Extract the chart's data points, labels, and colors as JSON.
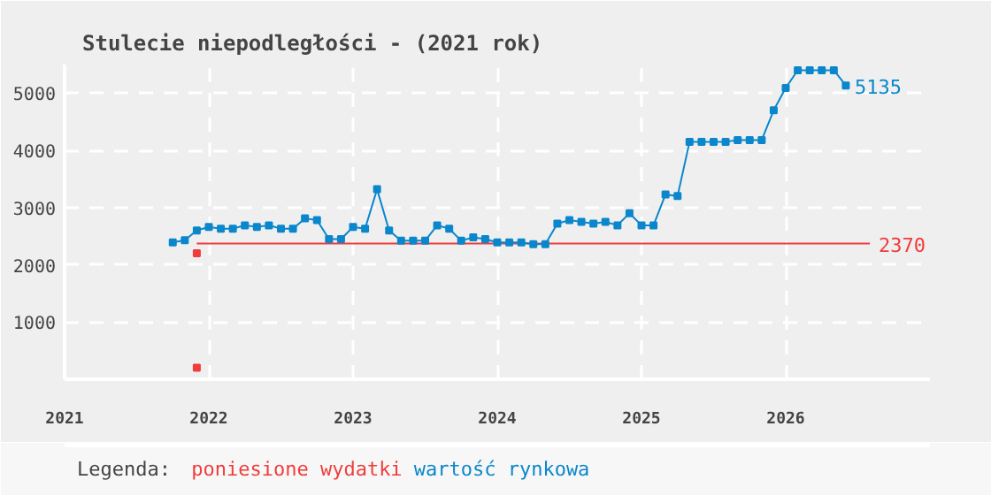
{
  "chart_data": {
    "type": "line",
    "title": "Stulecie niepodległości - (2021 rok)",
    "legend_title": "Legenda:",
    "x": [
      "2021-10",
      "2021-11",
      "2021-12",
      "2022-01",
      "2022-02",
      "2022-03",
      "2022-04",
      "2022-05",
      "2022-06",
      "2022-07",
      "2022-08",
      "2022-09",
      "2022-10",
      "2022-11",
      "2022-12",
      "2023-01",
      "2023-02",
      "2023-03",
      "2023-04",
      "2023-05",
      "2023-06",
      "2023-07",
      "2023-08",
      "2023-09",
      "2023-10",
      "2023-11",
      "2023-12",
      "2024-01",
      "2024-02",
      "2024-03",
      "2024-04",
      "2024-05",
      "2024-06",
      "2024-07",
      "2024-08",
      "2024-09",
      "2024-10",
      "2024-11",
      "2024-12",
      "2025-01",
      "2025-02",
      "2025-03",
      "2025-04",
      "2025-05",
      "2025-06",
      "2025-07",
      "2025-08",
      "2025-09",
      "2025-10",
      "2025-11",
      "2025-12",
      "2026-01",
      "2026-02",
      "2026-03",
      "2026-04",
      "2026-05",
      "2026-06"
    ],
    "series": [
      {
        "name": "poniesione wydatki",
        "type": "scatter",
        "color": "#f03c3c",
        "marker": "square",
        "x": [
          "2021-12",
          "2021-12"
        ],
        "values": [
          2200,
          200
        ]
      },
      {
        "type": "line",
        "color": "#f03c3c",
        "marker": "none",
        "x": [
          "2021-12",
          "2026-08"
        ],
        "values": [
          2370,
          2370
        ],
        "value_labels": [
          null,
          "2370"
        ]
      },
      {
        "name": "wartość rynkowa",
        "color": "#0a87cc",
        "marker": "square",
        "values": [
          2390,
          2430,
          2600,
          2660,
          2630,
          2630,
          2690,
          2660,
          2690,
          2630,
          2630,
          2810,
          2780,
          2450,
          2450,
          2660,
          2630,
          3320,
          2600,
          2420,
          2420,
          2420,
          2690,
          2630,
          2420,
          2480,
          2450,
          2390,
          2390,
          2390,
          2360,
          2360,
          2720,
          2780,
          2750,
          2720,
          2750,
          2690,
          2900,
          2690,
          2690,
          3230,
          3200,
          4150,
          4150,
          4150,
          4150,
          4180,
          4180,
          4180,
          4700,
          5090,
          5400,
          5400,
          5400,
          5400,
          5135
        ],
        "value_labels": [
          null,
          null,
          null,
          null,
          null,
          null,
          null,
          null,
          null,
          null,
          null,
          null,
          null,
          null,
          null,
          null,
          null,
          null,
          null,
          null,
          null,
          null,
          null,
          null,
          null,
          null,
          null,
          null,
          null,
          null,
          null,
          null,
          null,
          null,
          null,
          null,
          null,
          null,
          null,
          null,
          null,
          null,
          null,
          null,
          null,
          null,
          null,
          null,
          null,
          null,
          null,
          null,
          null,
          null,
          null,
          null,
          "5135"
        ]
      }
    ],
    "xlim": [
      "2021-01",
      "2027-01"
    ],
    "xticks": [
      {
        "value": "2021",
        "label": "2021"
      },
      {
        "value": "2022",
        "label": "2022"
      },
      {
        "value": "2023",
        "label": "2023"
      },
      {
        "value": "2024",
        "label": "2024"
      },
      {
        "value": "2025",
        "label": "2025"
      },
      {
        "value": "2026",
        "label": "2026"
      }
    ],
    "ylim": [
      0,
      5500
    ],
    "yticks": [
      {
        "value": 0,
        "label": null
      },
      1000,
      2000,
      3000,
      4000,
      5000
    ],
    "grid": true,
    "line_style": "solid",
    "legend": "bottom"
  }
}
